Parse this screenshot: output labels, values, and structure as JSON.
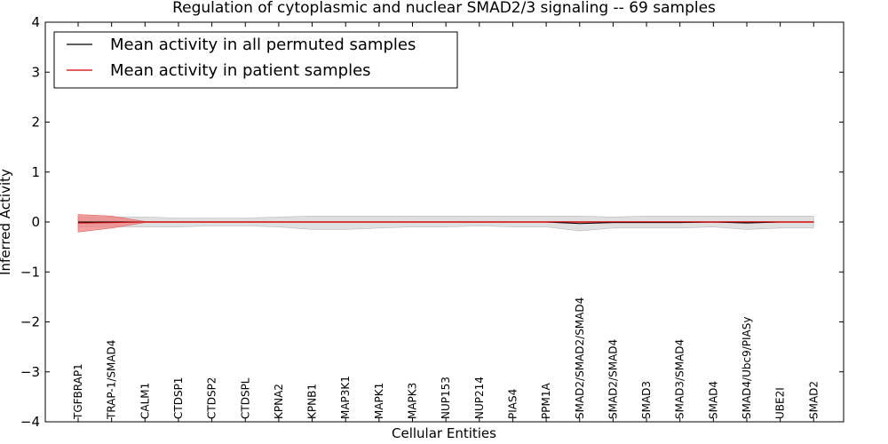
{
  "chart_data": {
    "type": "line",
    "title": "Regulation of cytoplasmic and nuclear SMAD2/3 signaling -- 69 samples",
    "xlabel": "Cellular Entities",
    "ylabel": "Inferred Activity",
    "ylim": [
      -4,
      4
    ],
    "yticks": [
      4,
      3,
      2,
      1,
      0,
      -1,
      -2,
      -3,
      -4
    ],
    "ytick_labels": [
      "4",
      "3",
      "2",
      "1",
      "0",
      "−1",
      "−2",
      "−3",
      "−4"
    ],
    "grid": false,
    "legend_position": "top-left",
    "categories": [
      "TGFBRAP1",
      "TRAP-1/SMAD4",
      "CALM1",
      "CTDSP1",
      "CTDSP2",
      "CTDSPL",
      "KPNA2",
      "KPNB1",
      "MAP3K1",
      "MAPK1",
      "MAPK3",
      "NUP153",
      "NUP214",
      "PIAS4",
      "PPM1A",
      "SMAD2/SMAD2/SMAD4",
      "SMAD2/SMAD4",
      "SMAD3",
      "SMAD3/SMAD4",
      "SMAD4",
      "SMAD4/Ubc9/PIASy",
      "UBE2I",
      "SMAD2"
    ],
    "series": [
      {
        "name": "Mean activity in all permuted samples",
        "color": "#000000",
        "values": [
          0,
          0,
          0,
          0,
          0,
          0,
          0,
          0,
          0,
          0,
          0,
          0,
          0,
          0,
          0,
          -0.03,
          -0.01,
          -0.01,
          -0.01,
          0,
          -0.02,
          0,
          0
        ],
        "band_lower": [
          -0.1,
          -0.1,
          -0.1,
          -0.1,
          -0.08,
          -0.08,
          -0.1,
          -0.15,
          -0.15,
          -0.12,
          -0.1,
          -0.1,
          -0.08,
          -0.1,
          -0.1,
          -0.18,
          -0.12,
          -0.12,
          -0.12,
          -0.1,
          -0.15,
          -0.12,
          -0.12
        ],
        "band_upper": [
          0.1,
          0.1,
          0.1,
          0.08,
          0.08,
          0.08,
          0.1,
          0.12,
          0.12,
          0.12,
          0.12,
          0.12,
          0.12,
          0.12,
          0.12,
          0.12,
          0.1,
          0.12,
          0.12,
          0.12,
          0.12,
          0.12,
          0.12
        ],
        "band_color": "#d9d9d9"
      },
      {
        "name": "Mean activity in patient samples",
        "color": "#cc0000",
        "values": [
          -0.02,
          -0.01,
          0,
          0,
          0,
          0,
          0,
          0,
          0,
          0,
          0,
          0,
          0,
          0,
          0,
          0,
          0,
          0,
          0,
          0,
          0,
          0,
          0
        ],
        "band_lower": [
          -0.2,
          -0.12,
          -0.01,
          -0.01,
          -0.01,
          -0.01,
          -0.01,
          -0.01,
          -0.01,
          -0.01,
          -0.01,
          -0.01,
          -0.01,
          -0.01,
          -0.01,
          -0.01,
          -0.01,
          -0.01,
          -0.01,
          -0.01,
          -0.01,
          -0.01,
          -0.01
        ],
        "band_upper": [
          0.15,
          0.12,
          0.01,
          0.01,
          0.01,
          0.01,
          0.01,
          0.01,
          0.01,
          0.01,
          0.01,
          0.01,
          0.01,
          0.01,
          0.01,
          0.01,
          0.01,
          0.01,
          0.01,
          0.01,
          0.01,
          0.01,
          0.01
        ],
        "band_color": "#f08080"
      }
    ]
  }
}
